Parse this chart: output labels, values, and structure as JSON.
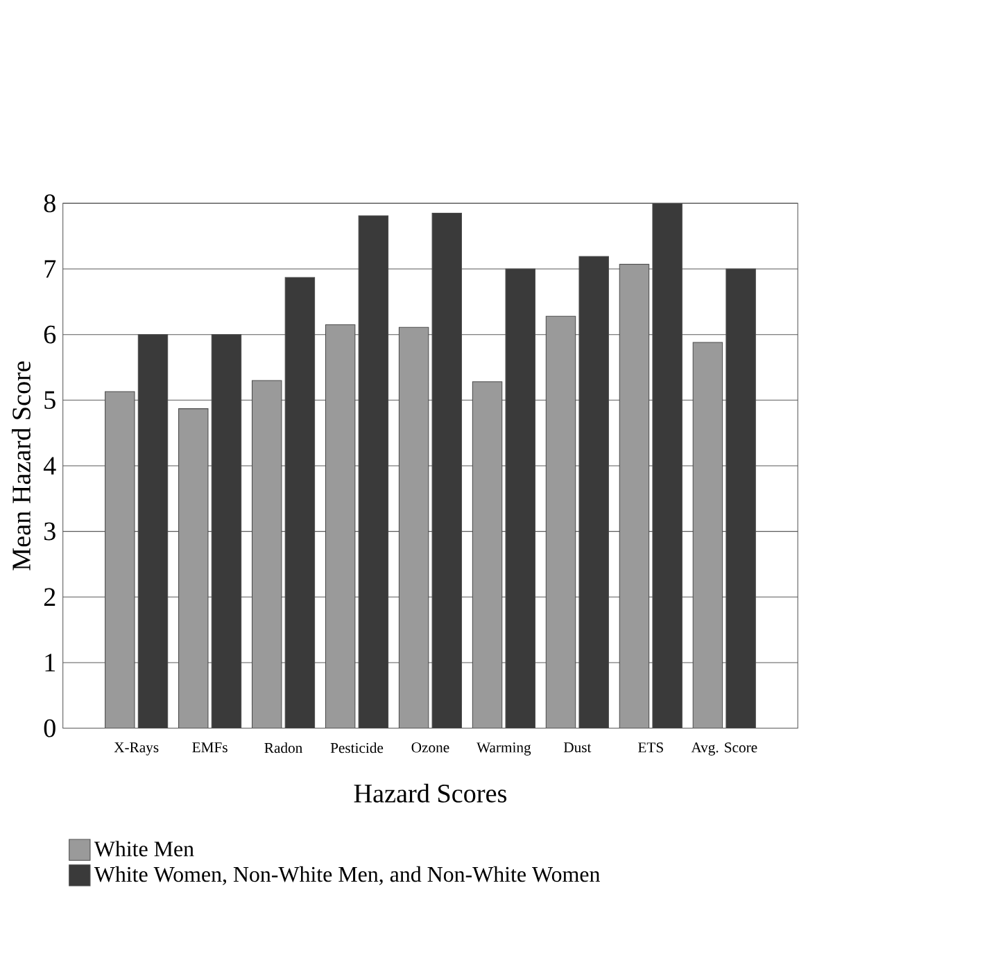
{
  "chart_data": {
    "type": "bar",
    "xlabel": "Hazard Scores",
    "ylabel": "Mean Hazard Score",
    "categories": [
      "X-Rays",
      "EMFs",
      "Radon",
      "Pesticide",
      "Ozone",
      "Warming",
      "Dust",
      "ETS",
      "Avg. Score"
    ],
    "series": [
      {
        "name": "White Men",
        "color": "#9a9a9a",
        "values": [
          5.13,
          4.87,
          5.3,
          6.15,
          6.11,
          5.28,
          6.28,
          7.07,
          5.88
        ]
      },
      {
        "name": "White Women, Non-White Men, and Non-White Women",
        "color": "#3a3a3a",
        "values": [
          6.0,
          6.0,
          6.87,
          7.81,
          7.85,
          7.0,
          7.19,
          8.0,
          7.0
        ]
      }
    ],
    "ylim": [
      0,
      8
    ],
    "yticks": [
      0,
      1,
      2,
      3,
      4,
      5,
      6,
      7,
      8
    ],
    "grid": "y",
    "legend": "bottom left"
  }
}
